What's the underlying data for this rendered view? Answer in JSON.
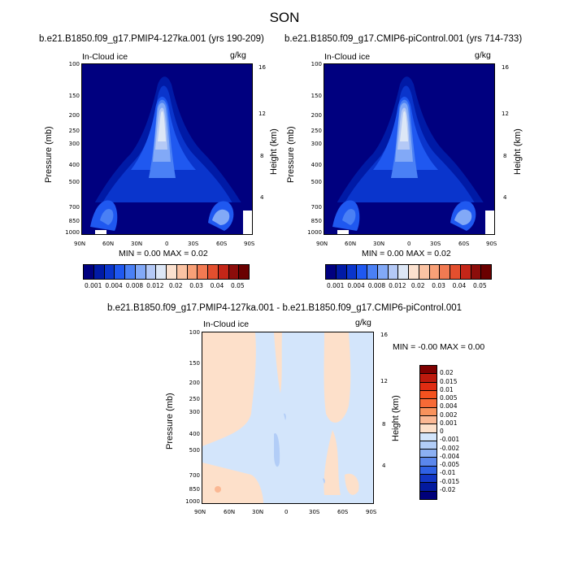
{
  "figure_title": "SON",
  "panels": [
    {
      "subtitle": "b.e21.B1850.f09_g17.PMIP4-127ka.001 (yrs 190-209)",
      "left_label": "In-Cloud ice",
      "right_label": "g/kg",
      "ylabel": "Pressure (mb)",
      "y2label": "Height (km)",
      "minmax": "MIN =   0.00  MAX =   0.02"
    },
    {
      "subtitle": "b.e21.B1850.f09_g17.CMIP6-piControl.001 (yrs 714-733)",
      "left_label": "In-Cloud ice",
      "right_label": "g/kg",
      "ylabel": "Pressure (mb)",
      "y2label": "Height (km)",
      "minmax": "MIN =   0.00  MAX =   0.02"
    },
    {
      "subtitle": "b.e21.B1850.f09_g17.PMIP4-127ka.001 - b.e21.B1850.f09_g17.CMIP6-piControl.001",
      "left_label": "In-Cloud ice",
      "right_label": "g/kg",
      "ylabel": "Pressure (mb)",
      "y2label": "Height (km)",
      "minmax": "MIN =  -0.00  MAX =   0.00"
    }
  ],
  "axes": {
    "x_ticks": [
      "90N",
      "60N",
      "30N",
      "0",
      "30S",
      "60S",
      "90S"
    ],
    "p_ticks": [
      "100",
      "150",
      "200",
      "250",
      "300",
      "400",
      "500",
      "700",
      "850",
      "1000"
    ],
    "h_ticks": [
      "16",
      "12",
      "8",
      "4"
    ]
  },
  "colorbars": {
    "abs_labels": [
      "0.001",
      "0.004",
      "0.008",
      "0.012",
      "0.02",
      "0.03",
      "0.04",
      "0.05"
    ],
    "abs_colors": [
      "#00007f",
      "#001aa6",
      "#0a35cc",
      "#1f58f0",
      "#4a80f5",
      "#82a9f7",
      "#b4c9f6",
      "#dde7f6",
      "#fbe1cf",
      "#fbc3a3",
      "#f8a077",
      "#f27a52",
      "#e34f2e",
      "#c42618",
      "#8c0d0b",
      "#6a0000"
    ],
    "diff_labels": [
      "0.02",
      "0.015",
      "0.01",
      "0.005",
      "0.004",
      "0.002",
      "0.001",
      "0",
      "-0.001",
      "-0.002",
      "-0.004",
      "-0.005",
      "-0.01",
      "-0.015",
      "-0.02"
    ],
    "diff_colors": [
      "#7f0000",
      "#bd1a0d",
      "#e02c12",
      "#f4521f",
      "#f76a36",
      "#f9925c",
      "#fbb894",
      "#fde0ca",
      "#d3e5fb",
      "#b2cdf7",
      "#8cb0f3",
      "#5b87ec",
      "#2f61e4",
      "#1236c4",
      "#031a9e",
      "#00007a"
    ]
  },
  "chart_data": [
    {
      "type": "heatmap",
      "title": "b.e21.B1850.f09_g17.PMIP4-127ka.001 (yrs 190-209)",
      "field": "In-Cloud ice",
      "units": "g/kg",
      "x": [
        "90N",
        "60N",
        "30N",
        "0",
        "30S",
        "60S",
        "90S"
      ],
      "y_pressure_mb": [
        100,
        150,
        200,
        250,
        300,
        400,
        500,
        700,
        850,
        1000
      ],
      "y_height_km": [
        16,
        12,
        8,
        4
      ],
      "min": 0.0,
      "max": 0.02,
      "levels": [
        0.001,
        0.004,
        0.008,
        0.012,
        0.02,
        0.03,
        0.04,
        0.05
      ]
    },
    {
      "type": "heatmap",
      "title": "b.e21.B1850.f09_g17.CMIP6-piControl.001 (yrs 714-733)",
      "field": "In-Cloud ice",
      "units": "g/kg",
      "x": [
        "90N",
        "60N",
        "30N",
        "0",
        "30S",
        "60S",
        "90S"
      ],
      "y_pressure_mb": [
        100,
        150,
        200,
        250,
        300,
        400,
        500,
        700,
        850,
        1000
      ],
      "y_height_km": [
        16,
        12,
        8,
        4
      ],
      "min": 0.0,
      "max": 0.02,
      "levels": [
        0.001,
        0.004,
        0.008,
        0.012,
        0.02,
        0.03,
        0.04,
        0.05
      ]
    },
    {
      "type": "heatmap",
      "title": "b.e21.B1850.f09_g17.PMIP4-127ka.001 - b.e21.B1850.f09_g17.CMIP6-piControl.001",
      "field": "In-Cloud ice",
      "units": "g/kg",
      "x": [
        "90N",
        "60N",
        "30N",
        "0",
        "30S",
        "60S",
        "90S"
      ],
      "y_pressure_mb": [
        100,
        150,
        200,
        250,
        300,
        400,
        500,
        700,
        850,
        1000
      ],
      "y_height_km": [
        16,
        12,
        8,
        4
      ],
      "min": -0.0,
      "max": 0.0,
      "levels": [
        0.02,
        0.015,
        0.01,
        0.005,
        0.004,
        0.002,
        0.001,
        0,
        -0.001,
        -0.002,
        -0.004,
        -0.005,
        -0.01,
        -0.015,
        -0.02
      ]
    }
  ]
}
